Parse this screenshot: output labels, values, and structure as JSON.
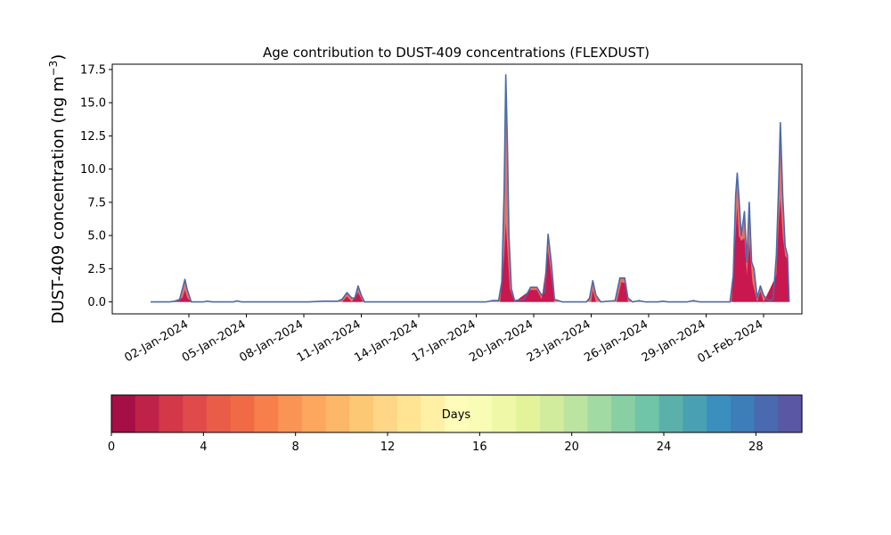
{
  "chart_data": {
    "type": "area",
    "title": "Age contribution to DUST-409 concentrations (FLEXDUST)",
    "ylabel": "DUST-409 concentration (ng m",
    "ylabel_sup": "−3",
    "ylabel_close": ")",
    "ylim": [
      -0.9,
      17.9
    ],
    "xlim": [
      "2023-12-29",
      "2024-02-03"
    ],
    "x_ticks": [
      "02-Jan-2024",
      "05-Jan-2024",
      "08-Jan-2024",
      "11-Jan-2024",
      "14-Jan-2024",
      "17-Jan-2024",
      "20-Jan-2024",
      "23-Jan-2024",
      "26-Jan-2024",
      "29-Jan-2024",
      "01-Feb-2024"
    ],
    "x_tick_dates": [
      "2024-01-02",
      "2024-01-05",
      "2024-01-08",
      "2024-01-11",
      "2024-01-14",
      "2024-01-17",
      "2024-01-20",
      "2024-01-23",
      "2024-01-26",
      "2024-01-29",
      "2024-02-01"
    ],
    "y_ticks": [
      "0.0",
      "2.5",
      "5.0",
      "7.5",
      "10.0",
      "12.5",
      "15.0",
      "17.5"
    ],
    "y_tick_values": [
      0,
      2.5,
      5,
      7.5,
      10,
      12.5,
      15,
      17.5
    ],
    "total_series": {
      "color": "#4a6aa8",
      "points": [
        [
          "2023-12-31 00:00",
          0
        ],
        [
          "2024-01-01 00:00",
          0
        ],
        [
          "2024-01-01 12:00",
          0.1
        ],
        [
          "2024-01-01 16:00",
          1.0
        ],
        [
          "2024-01-01 19:00",
          1.7
        ],
        [
          "2024-01-01 22:00",
          0.9
        ],
        [
          "2024-01-02 03:00",
          0
        ],
        [
          "2024-01-02 18:00",
          0
        ],
        [
          "2024-01-02 22:00",
          0.05
        ],
        [
          "2024-01-03 06:00",
          0
        ],
        [
          "2024-01-04 08:00",
          0
        ],
        [
          "2024-01-04 12:00",
          0.08
        ],
        [
          "2024-01-04 18:00",
          0
        ],
        [
          "2024-01-08 06:00",
          0
        ],
        [
          "2024-01-09 00:00",
          0.05
        ],
        [
          "2024-01-09 18:00",
          0.05
        ],
        [
          "2024-01-10 00:00",
          0.2
        ],
        [
          "2024-01-10 06:00",
          0.7
        ],
        [
          "2024-01-10 12:00",
          0.3
        ],
        [
          "2024-01-10 16:00",
          0.3
        ],
        [
          "2024-01-10 20:00",
          1.2
        ],
        [
          "2024-01-11 00:00",
          0.5
        ],
        [
          "2024-01-11 04:00",
          0
        ],
        [
          "2024-01-17 12:00",
          0
        ],
        [
          "2024-01-17 20:00",
          0.1
        ],
        [
          "2024-01-18 04:00",
          0.1
        ],
        [
          "2024-01-18 08:00",
          1.5
        ],
        [
          "2024-01-18 11:00",
          8.5
        ],
        [
          "2024-01-18 13:00",
          17.1
        ],
        [
          "2024-01-18 15:00",
          12.0
        ],
        [
          "2024-01-18 17:00",
          5.0
        ],
        [
          "2024-01-18 20:00",
          1.0
        ],
        [
          "2024-01-19 00:00",
          0.1
        ],
        [
          "2024-01-19 12:00",
          0.2
        ],
        [
          "2024-01-19 20:00",
          1.1
        ],
        [
          "2024-01-20 04:00",
          1.1
        ],
        [
          "2024-01-20 10:00",
          0.5
        ],
        [
          "2024-01-20 14:00",
          0.8
        ],
        [
          "2024-01-20 18:00",
          5.1
        ],
        [
          "2024-01-20 22:00",
          3.0
        ],
        [
          "2024-01-21 02:00",
          0.2
        ],
        [
          "2024-01-21 12:00",
          0
        ],
        [
          "2024-01-22 18:00",
          0
        ],
        [
          "2024-01-22 22:00",
          0.3
        ],
        [
          "2024-01-23 02:00",
          1.6
        ],
        [
          "2024-01-23 06:00",
          0.5
        ],
        [
          "2024-01-23 12:00",
          0
        ],
        [
          "2024-01-24 06:00",
          0.1
        ],
        [
          "2024-01-24 12:00",
          1.8
        ],
        [
          "2024-01-24 18:00",
          1.8
        ],
        [
          "2024-01-24 22:00",
          0.3
        ],
        [
          "2024-01-25 04:00",
          0
        ],
        [
          "2024-01-25 12:00",
          0.1
        ],
        [
          "2024-01-25 20:00",
          0
        ],
        [
          "2024-01-26 12:00",
          0
        ],
        [
          "2024-01-26 18:00",
          0.05
        ],
        [
          "2024-01-27 00:00",
          0
        ],
        [
          "2024-01-28 00:00",
          0
        ],
        [
          "2024-01-28 08:00",
          0.1
        ],
        [
          "2024-01-28 16:00",
          0
        ],
        [
          "2024-01-30 06:00",
          0
        ],
        [
          "2024-01-30 10:00",
          2.0
        ],
        [
          "2024-01-30 13:00",
          8.0
        ],
        [
          "2024-01-30 15:00",
          9.7
        ],
        [
          "2024-01-30 17:00",
          8.0
        ],
        [
          "2024-01-30 20:00",
          5.0
        ],
        [
          "2024-01-31 00:00",
          6.8
        ],
        [
          "2024-01-31 03:00",
          3.0
        ],
        [
          "2024-01-31 06:00",
          7.5
        ],
        [
          "2024-01-31 09:00",
          3.0
        ],
        [
          "2024-01-31 12:00",
          2.5
        ],
        [
          "2024-01-31 16:00",
          0.3
        ],
        [
          "2024-01-31 20:00",
          1.2
        ],
        [
          "2024-02-01 00:00",
          0.5
        ],
        [
          "2024-02-01 04:00",
          0.2
        ],
        [
          "2024-02-01 08:00",
          0.1
        ],
        [
          "2024-02-01 12:00",
          0.2
        ],
        [
          "2024-02-01 16:00",
          3.5
        ],
        [
          "2024-02-01 19:00",
          9.0
        ],
        [
          "2024-02-01 21:00",
          13.5
        ],
        [
          "2024-02-02 00:00",
          8.0
        ],
        [
          "2024-02-02 03:00",
          4.2
        ],
        [
          "2024-02-02 06:00",
          3.5
        ],
        [
          "2024-02-02 08:00",
          0
        ]
      ]
    },
    "young_series": {
      "color": "#c9174f",
      "points": [
        [
          "2024-01-01 00:00",
          0
        ],
        [
          "2024-01-01 16:00",
          0.3
        ],
        [
          "2024-01-01 19:00",
          0.9
        ],
        [
          "2024-01-01 22:00",
          0.3
        ],
        [
          "2024-01-02 03:00",
          0
        ],
        [
          "2024-01-10 00:00",
          0
        ],
        [
          "2024-01-10 06:00",
          0.4
        ],
        [
          "2024-01-10 12:00",
          0
        ],
        [
          "2024-01-10 20:00",
          0.7
        ],
        [
          "2024-01-11 02:00",
          0
        ],
        [
          "2024-01-18 06:00",
          0
        ],
        [
          "2024-01-18 11:00",
          3.5
        ],
        [
          "2024-01-18 13:00",
          6.0
        ],
        [
          "2024-01-18 15:00",
          4.0
        ],
        [
          "2024-01-18 18:00",
          1.0
        ],
        [
          "2024-01-19 00:00",
          0
        ],
        [
          "2024-01-19 20:00",
          0.9
        ],
        [
          "2024-01-20 04:00",
          0.9
        ],
        [
          "2024-01-20 10:00",
          0.2
        ],
        [
          "2024-01-20 18:00",
          3.8
        ],
        [
          "2024-01-20 22:00",
          2.0
        ],
        [
          "2024-01-21 02:00",
          0
        ],
        [
          "2024-01-23 00:00",
          0
        ],
        [
          "2024-01-23 02:00",
          0.9
        ],
        [
          "2024-01-23 06:00",
          0
        ],
        [
          "2024-01-24 08:00",
          0
        ],
        [
          "2024-01-24 14:00",
          1.5
        ],
        [
          "2024-01-24 18:00",
          1.4
        ],
        [
          "2024-01-24 22:00",
          0
        ],
        [
          "2024-01-30 08:00",
          0
        ],
        [
          "2024-01-30 13:00",
          5.2
        ],
        [
          "2024-01-30 15:00",
          7.2
        ],
        [
          "2024-01-30 17:00",
          5.0
        ],
        [
          "2024-01-30 20:00",
          4.6
        ],
        [
          "2024-01-31 00:00",
          4.8
        ],
        [
          "2024-01-31 03:00",
          2.0
        ],
        [
          "2024-01-31 06:00",
          4.5
        ],
        [
          "2024-01-31 10:00",
          1.5
        ],
        [
          "2024-01-31 16:00",
          0
        ],
        [
          "2024-01-31 20:00",
          0.8
        ],
        [
          "2024-02-01 00:00",
          0
        ],
        [
          "2024-02-01 16:00",
          2.0
        ],
        [
          "2024-02-01 19:00",
          6.0
        ],
        [
          "2024-02-01 21:00",
          7.8
        ],
        [
          "2024-02-02 00:00",
          5.0
        ],
        [
          "2024-02-02 03:00",
          3.5
        ],
        [
          "2024-02-02 06:00",
          3.2
        ],
        [
          "2024-02-02 08:00",
          0
        ]
      ]
    },
    "colorbar": {
      "label": "Days",
      "range": [
        0,
        30
      ],
      "ticks": [
        "0",
        "4",
        "8",
        "12",
        "16",
        "20",
        "24",
        "28"
      ],
      "tick_values": [
        0,
        4,
        8,
        12,
        16,
        20,
        24,
        28
      ],
      "colors": [
        "#a50f45",
        "#bf2248",
        "#d33849",
        "#e04a4a",
        "#e95c47",
        "#f06b45",
        "#f67f4b",
        "#f99455",
        "#fca65e",
        "#fdb768",
        "#fdc873",
        "#fed685",
        "#fee493",
        "#fff0a6",
        "#fffbb8",
        "#f9fcb4",
        "#eef8a6",
        "#e2f39a",
        "#d0ec9c",
        "#bae4a0",
        "#a2daa3",
        "#88cfa4",
        "#70c4a8",
        "#5bb1aa",
        "#4aa0b3",
        "#3b8fbe",
        "#3d7eb8",
        "#4a69ae",
        "#5a57a5"
      ]
    }
  }
}
